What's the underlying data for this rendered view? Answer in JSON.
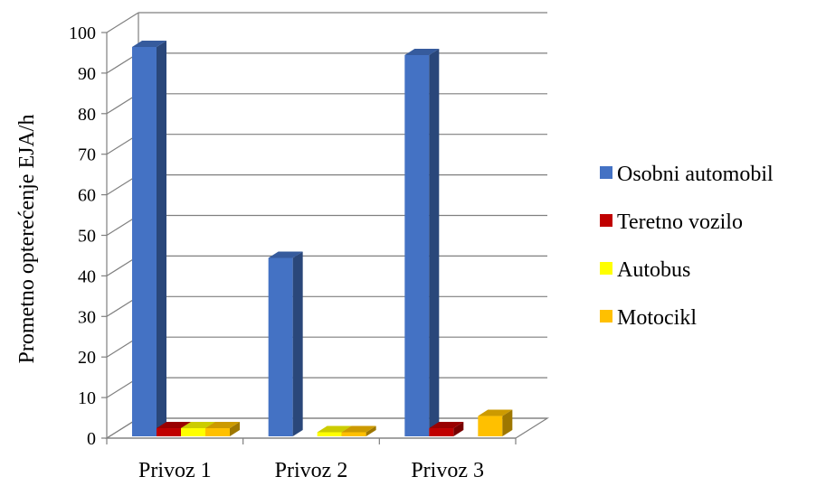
{
  "chart_data": {
    "type": "bar",
    "title": "",
    "xlabel": "",
    "ylabel": "Prometno opterećenje EJA/h",
    "categories": [
      "Privoz 1",
      "Privoz 2",
      "Privoz 3"
    ],
    "series": [
      {
        "name": "Osobni automobil",
        "values": [
          96,
          44,
          94
        ],
        "color": "#4472C4"
      },
      {
        "name": "Teretno vozilo",
        "values": [
          2,
          0,
          2
        ],
        "color": "#C00000"
      },
      {
        "name": "Autobus",
        "values": [
          2,
          1,
          0
        ],
        "color": "#FFFF00"
      },
      {
        "name": "Motocikl",
        "values": [
          2,
          1,
          5
        ],
        "color": "#FFC000"
      }
    ],
    "ylim": [
      0,
      100
    ],
    "yticks": [
      "0",
      "10",
      "20",
      "30",
      "40",
      "50",
      "60",
      "70",
      "80",
      "90",
      "100"
    ],
    "grid": true,
    "legend": "right",
    "style": "3d-clustered-column"
  }
}
